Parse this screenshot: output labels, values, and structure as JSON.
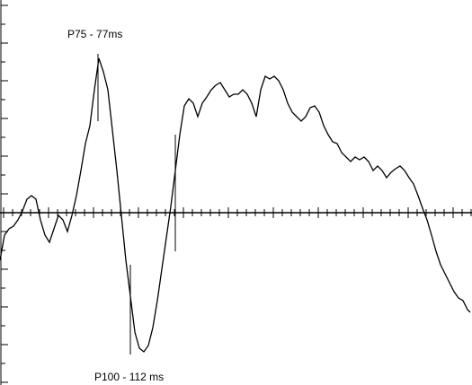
{
  "chart_data": {
    "type": "line",
    "annotations": [
      "P75 - 77ms",
      "P100 - 112 ms"
    ],
    "xlim": [
      0,
      525
    ],
    "ylim": [
      -192,
      237
    ],
    "xticks": [
      0,
      10,
      20,
      30,
      40,
      50,
      60,
      70,
      80,
      90,
      100,
      110,
      120,
      130,
      140,
      150,
      160,
      170,
      180,
      190,
      200,
      210,
      220,
      230,
      240,
      250,
      260,
      270,
      280,
      290,
      300,
      310,
      320,
      330,
      340,
      350,
      360,
      370,
      380,
      390,
      400,
      410,
      420,
      430,
      440,
      450,
      460,
      470,
      480,
      490,
      500,
      510,
      520
    ],
    "yticks": [
      -189,
      -168,
      -147,
      -126,
      -105,
      -84,
      -63,
      -42,
      -21,
      0,
      21,
      42,
      63,
      84,
      105,
      126,
      147,
      168,
      189,
      210,
      231
    ],
    "color": "#000000",
    "x": [
      0,
      5,
      10,
      15,
      20,
      25,
      30,
      35,
      40,
      45,
      50,
      55,
      60,
      65,
      70,
      75,
      80,
      85,
      90,
      95,
      100,
      105,
      110,
      115,
      120,
      125,
      130,
      135,
      140,
      145,
      150,
      155,
      160,
      165,
      170,
      175,
      180,
      185,
      190,
      195,
      200,
      205,
      210,
      215,
      220,
      225,
      230,
      235,
      240,
      245,
      250,
      255,
      260,
      265,
      270,
      275,
      280,
      285,
      290,
      295,
      300,
      305,
      310,
      315,
      320,
      325,
      330,
      335,
      340,
      345,
      350,
      355,
      360,
      365,
      370,
      375,
      380,
      385,
      390,
      395,
      400,
      405,
      410,
      415,
      420,
      425,
      430,
      435,
      440,
      445,
      450,
      455,
      460,
      465,
      470,
      475,
      480,
      485,
      490,
      495,
      500,
      505,
      510,
      515,
      520,
      523
    ],
    "values": [
      -53,
      -25,
      -18,
      -15,
      -8,
      2,
      15,
      19,
      15,
      -8,
      -25,
      -33,
      -18,
      -3,
      -8,
      -21,
      -3,
      19,
      47,
      77,
      97,
      137,
      172,
      157,
      137,
      92,
      47,
      -3,
      -53,
      -93,
      -133,
      -151,
      -155,
      -148,
      -128,
      -98,
      -63,
      -28,
      7,
      47,
      87,
      119,
      127,
      122,
      107,
      122,
      129,
      137,
      142,
      145,
      137,
      129,
      132,
      132,
      137,
      132,
      122,
      107,
      137,
      152,
      149,
      152,
      147,
      137,
      122,
      112,
      107,
      102,
      107,
      117,
      119,
      112,
      97,
      87,
      79,
      77,
      67,
      62,
      57,
      62,
      59,
      62,
      57,
      47,
      52,
      47,
      39,
      45,
      49,
      52,
      47,
      39,
      32,
      19,
      5,
      -8,
      -25,
      -43,
      -58,
      -68,
      -78,
      -88,
      -95,
      -98,
      -108,
      -111
    ]
  }
}
